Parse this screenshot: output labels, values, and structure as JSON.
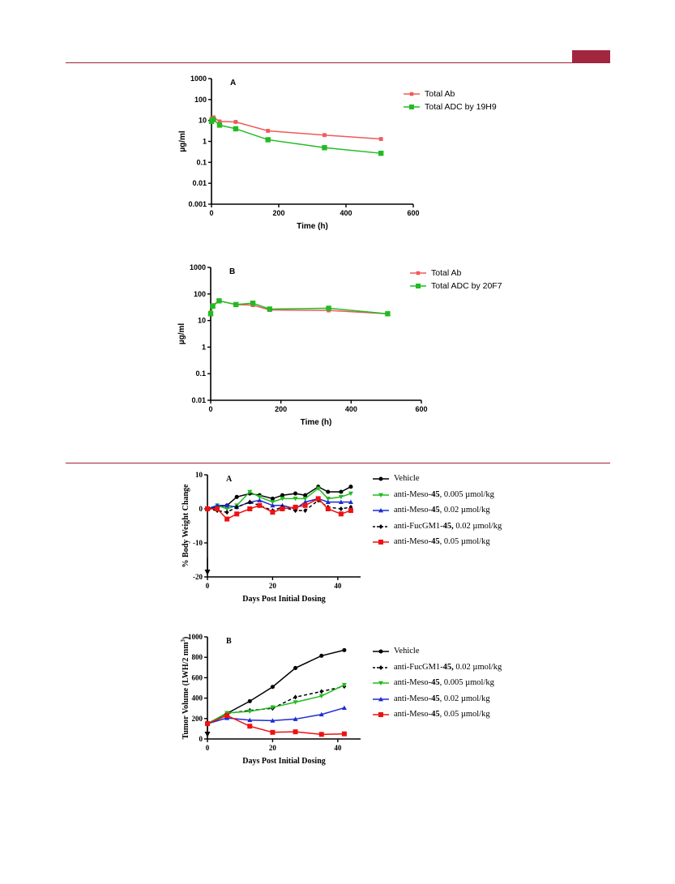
{
  "page": {
    "header_rule_color": "#9d2235",
    "accent_color": "#a3263f",
    "divider_color": "#9d2235"
  },
  "charts": [
    {
      "type": "line",
      "panel": "A",
      "font": "sans",
      "yscale": "log",
      "ylim": [
        0.001,
        1000
      ],
      "xlim": [
        0,
        600
      ],
      "xticks": [
        "0",
        "200",
        "400",
        "600"
      ],
      "yticks": [
        "0.001",
        "0.01",
        "0.1",
        "1",
        "10",
        "100",
        "1000"
      ],
      "xlabel": "Time (h)",
      "ylabel": "µg/ml",
      "legend_position": "top-right",
      "series": [
        {
          "name": "Total Ab",
          "color": "#f05a5a",
          "marker": "square-small",
          "dash": false,
          "x": [
            0,
            6,
            24,
            72,
            168,
            336,
            504
          ],
          "y": [
            12,
            14,
            9,
            8.5,
            3.2,
            2.0,
            1.3
          ]
        },
        {
          "name": "Total ADC by 19H9",
          "color": "#22bb22",
          "marker": "square",
          "dash": false,
          "x": [
            0,
            6,
            24,
            72,
            168,
            336,
            504
          ],
          "y": [
            9,
            11,
            6,
            4,
            1.2,
            0.5,
            0.27
          ]
        }
      ]
    },
    {
      "type": "line",
      "panel": "B",
      "font": "sans",
      "yscale": "log",
      "ylim": [
        0.01,
        1000
      ],
      "xlim": [
        0,
        600
      ],
      "xticks": [
        "0",
        "200",
        "400",
        "600"
      ],
      "yticks": [
        "0.01",
        "0.1",
        "1",
        "10",
        "100",
        "1000"
      ],
      "xlabel": "Time (h)",
      "ylabel": "µg/ml",
      "legend_position": "top-right",
      "series": [
        {
          "name": "Total Ab",
          "color": "#f05a5a",
          "marker": "square-small",
          "dash": false,
          "x": [
            0,
            6,
            24,
            72,
            120,
            168,
            336,
            504
          ],
          "y": [
            20,
            38,
            55,
            40,
            38,
            25,
            24,
            18
          ]
        },
        {
          "name": "Total ADC by 20F7",
          "color": "#22bb22",
          "marker": "square",
          "dash": false,
          "x": [
            0,
            6,
            24,
            72,
            120,
            168,
            336,
            504
          ],
          "y": [
            18,
            35,
            55,
            40,
            45,
            27,
            29,
            18
          ]
        }
      ]
    },
    {
      "type": "line",
      "panel": "A",
      "font": "serif",
      "yscale": "linear",
      "ylim": [
        -20,
        10
      ],
      "xlim": [
        0,
        47
      ],
      "xticks": [
        "0",
        "20",
        "40"
      ],
      "yticks": [
        "-20",
        "-10",
        "0",
        "10"
      ],
      "xlabel": "Days Post Initial Dosing",
      "ylabel": "% Body Weight Change",
      "legend_position": "top-right",
      "arrow_at_x": 0,
      "series": [
        {
          "name_pre": "Vehicle",
          "name_bold": "",
          "name_post": "",
          "color": "#000000",
          "marker": "circle",
          "dash": false,
          "x": [
            0,
            3,
            6,
            9,
            13,
            16,
            20,
            23,
            27,
            30,
            34,
            37,
            41,
            44
          ],
          "y": [
            0,
            0.5,
            1,
            3.5,
            4.5,
            4,
            3,
            4,
            4.5,
            4,
            6.5,
            5,
            5,
            6.5
          ]
        },
        {
          "name_pre": "anti-Meso-",
          "name_bold": "45",
          "name_post": ", 0.005 µmol/kg",
          "color": "#22bb22",
          "marker": "tri-down",
          "dash": false,
          "x": [
            0,
            3,
            6,
            9,
            13,
            16,
            20,
            23,
            27,
            30,
            34,
            37,
            41,
            44
          ],
          "y": [
            0,
            1,
            0,
            1,
            5,
            3.5,
            2,
            3,
            3,
            3,
            6,
            3,
            3.5,
            4.5
          ]
        },
        {
          "name_pre": "anti-Meso-",
          "name_bold": "45",
          "name_post": ", 0.02 µmol/kg",
          "color": "#1f2bd1",
          "marker": "tri-up",
          "dash": false,
          "x": [
            0,
            3,
            6,
            9,
            13,
            16,
            20,
            23,
            27,
            30,
            34,
            37,
            41,
            44
          ],
          "y": [
            0,
            1,
            1,
            0.5,
            2,
            2.5,
            1,
            1,
            0,
            2,
            3,
            2,
            2,
            2
          ]
        },
        {
          "name_pre": "anti-FucGM1-",
          "name_bold": "45,",
          "name_post": " 0.02 µmol/kg",
          "color": "#000000",
          "marker": "diamond",
          "dash": true,
          "x": [
            0,
            3,
            6,
            9,
            13,
            16,
            20,
            23,
            27,
            30,
            34,
            37,
            41,
            44
          ],
          "y": [
            0,
            -0.5,
            -1,
            0.5,
            2,
            1,
            -0.5,
            0.5,
            -0.5,
            -0.5,
            2.5,
            0.5,
            0,
            0.5
          ]
        },
        {
          "name_pre": "anti-Meso-",
          "name_bold": "45",
          "name_post": ", 0.05 µmol/kg",
          "color": "#ee1111",
          "marker": "square",
          "dash": false,
          "x": [
            0,
            3,
            6,
            9,
            13,
            16,
            20,
            23,
            27,
            30,
            34,
            37,
            41,
            44
          ],
          "y": [
            0,
            0,
            -3,
            -1.5,
            0,
            1,
            -1,
            0,
            0.5,
            1,
            3,
            0,
            -1.5,
            -0.5
          ]
        }
      ]
    },
    {
      "type": "line",
      "panel": "B",
      "font": "serif",
      "yscale": "linear",
      "ylim": [
        0,
        1000
      ],
      "xlim": [
        0,
        47
      ],
      "xticks": [
        "0",
        "20",
        "40"
      ],
      "yticks": [
        "0",
        "200",
        "400",
        "600",
        "800",
        "1000"
      ],
      "xlabel": "Days Post Initial Dosing",
      "ylabel": "Tumor Volume (LWH/2 mm",
      "ylabel_sup": "3",
      "ylabel_end": ")",
      "legend_position": "top-right",
      "arrow_at_x": 0,
      "series": [
        {
          "name_pre": "Vehicle",
          "name_bold": "",
          "name_post": "",
          "color": "#000000",
          "marker": "circle",
          "dash": false,
          "x": [
            0,
            6,
            13,
            20,
            27,
            35,
            42
          ],
          "y": [
            150,
            250,
            370,
            510,
            695,
            815,
            870
          ]
        },
        {
          "name_pre": "anti-FucGM1-",
          "name_bold": "45,",
          "name_post": " 0.02 µmol/kg",
          "color": "#000000",
          "marker": "diamond",
          "dash": true,
          "x": [
            0,
            6,
            13,
            20,
            27,
            35,
            42
          ],
          "y": [
            150,
            250,
            280,
            300,
            410,
            465,
            515
          ]
        },
        {
          "name_pre": "anti-Meso-",
          "name_bold": "45",
          "name_post": ", 0.005 µmol/kg",
          "color": "#22bb22",
          "marker": "tri-down",
          "dash": false,
          "x": [
            0,
            6,
            13,
            20,
            27,
            35,
            42
          ],
          "y": [
            150,
            255,
            270,
            310,
            360,
            420,
            530
          ]
        },
        {
          "name_pre": "anti-Meso-",
          "name_bold": "45",
          "name_post": ", 0.02 µmol/kg",
          "color": "#1f2bd1",
          "marker": "tri-up",
          "dash": false,
          "x": [
            0,
            6,
            13,
            20,
            27,
            35,
            42
          ],
          "y": [
            150,
            205,
            185,
            180,
            195,
            240,
            305
          ]
        },
        {
          "name_pre": "anti-Meso-",
          "name_bold": "45",
          "name_post": ", 0.05 µmol/kg",
          "color": "#ee1111",
          "marker": "square",
          "dash": false,
          "x": [
            0,
            6,
            13,
            20,
            27,
            35,
            42
          ],
          "y": [
            150,
            230,
            125,
            65,
            70,
            45,
            50
          ]
        }
      ]
    }
  ]
}
